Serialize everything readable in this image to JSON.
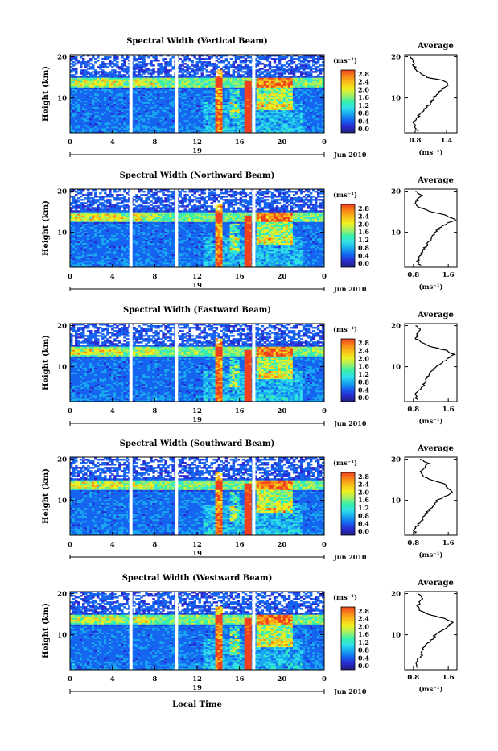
{
  "figure": {
    "xlabel": "Local Time",
    "date_label": "Jun 2010",
    "day_label": "19",
    "colorbar_unit": "(ms⁻¹)",
    "colorbar_ticks": [
      "0.0",
      "0.4",
      "0.8",
      "1.2",
      "1.6",
      "2.0",
      "2.4",
      "2.8"
    ],
    "colormap": [
      "#20207a",
      "#2a2ad0",
      "#1565f0",
      "#19a8f0",
      "#30e0e8",
      "#3af0a8",
      "#a8f060",
      "#f0f020",
      "#f8c018",
      "#f88818",
      "#f04020"
    ]
  },
  "chart_data": [
    {
      "type": "heatmap",
      "title": "Spectral Width (Vertical Beam)",
      "ylabel": "Height (km)",
      "x_ticks": [
        "0",
        "4",
        "8",
        "12",
        "16",
        "20",
        "0"
      ],
      "xlim": [
        0,
        24
      ],
      "y_ticks": [
        "10",
        "20"
      ],
      "ylim": [
        1.5,
        20.5
      ],
      "gaps": [
        [
          5.6,
          5.9
        ],
        [
          9.9,
          10.2
        ],
        [
          17.2,
          17.5
        ]
      ],
      "profile": {
        "title": "Average",
        "xlabel": "(ms⁻¹)",
        "x_ticks": [
          "0.8",
          "1.4"
        ],
        "xlim": [
          0.6,
          1.6
        ],
        "y_ticks": [
          "10",
          "20"
        ],
        "points": [
          [
            2,
            0.85
          ],
          [
            3,
            0.8
          ],
          [
            4,
            0.78
          ],
          [
            5,
            0.82
          ],
          [
            6,
            0.9
          ],
          [
            7,
            0.95
          ],
          [
            8,
            1.05
          ],
          [
            9,
            1.1
          ],
          [
            10,
            1.15
          ],
          [
            11,
            1.22
          ],
          [
            12,
            1.3
          ],
          [
            13,
            1.42
          ],
          [
            14,
            1.38
          ],
          [
            15,
            1.05
          ],
          [
            16,
            0.9
          ],
          [
            17,
            0.82
          ],
          [
            18,
            0.78
          ],
          [
            19,
            0.75
          ],
          [
            20,
            0.72
          ]
        ]
      }
    },
    {
      "type": "heatmap",
      "title": "Spectral Width (Northward Beam)",
      "ylabel": "Height (km)",
      "x_ticks": [
        "0",
        "4",
        "8",
        "12",
        "16",
        "20",
        "0"
      ],
      "xlim": [
        0,
        24
      ],
      "y_ticks": [
        "10",
        "20"
      ],
      "ylim": [
        1.5,
        20.5
      ],
      "gaps": [
        [
          5.6,
          5.9
        ],
        [
          9.9,
          10.2
        ],
        [
          17.2,
          17.5
        ]
      ],
      "profile": {
        "title": "Average",
        "xlabel": "(ms⁻¹)",
        "x_ticks": [
          "0.8",
          "1.6"
        ],
        "xlim": [
          0.6,
          1.8
        ],
        "y_ticks": [
          "10",
          "20"
        ],
        "points": [
          [
            2,
            0.95
          ],
          [
            3,
            0.9
          ],
          [
            4,
            0.95
          ],
          [
            5,
            1.0
          ],
          [
            6,
            1.05
          ],
          [
            7,
            1.1
          ],
          [
            8,
            1.2
          ],
          [
            9,
            1.25
          ],
          [
            10,
            1.3
          ],
          [
            11,
            1.4
          ],
          [
            12,
            1.55
          ],
          [
            13,
            1.75
          ],
          [
            14,
            1.6
          ],
          [
            15,
            1.2
          ],
          [
            16,
            0.95
          ],
          [
            17,
            0.85
          ],
          [
            18,
            0.9
          ],
          [
            19,
            1.0
          ],
          [
            20,
            0.85
          ]
        ]
      }
    },
    {
      "type": "heatmap",
      "title": "Spectral Width (Eastward Beam)",
      "ylabel": "Height (km)",
      "x_ticks": [
        "0",
        "4",
        "8",
        "12",
        "16",
        "20",
        "0"
      ],
      "xlim": [
        0,
        24
      ],
      "y_ticks": [
        "10",
        "20"
      ],
      "ylim": [
        1.5,
        20.5
      ],
      "gaps": [
        [
          5.6,
          5.9
        ],
        [
          9.9,
          10.2
        ],
        [
          17.2,
          17.5
        ]
      ],
      "profile": {
        "title": "Average",
        "xlabel": "(ms⁻¹)",
        "x_ticks": [
          "0.8",
          "1.6"
        ],
        "xlim": [
          0.6,
          1.8
        ],
        "y_ticks": [
          "10",
          "20"
        ],
        "points": [
          [
            2,
            0.9
          ],
          [
            3,
            0.85
          ],
          [
            4,
            0.9
          ],
          [
            5,
            1.0
          ],
          [
            6,
            1.05
          ],
          [
            7,
            1.1
          ],
          [
            8,
            1.15
          ],
          [
            9,
            1.25
          ],
          [
            10,
            1.3
          ],
          [
            11,
            1.45
          ],
          [
            12,
            1.6
          ],
          [
            13,
            1.72
          ],
          [
            14,
            1.55
          ],
          [
            15,
            1.15
          ],
          [
            16,
            0.95
          ],
          [
            17,
            0.85
          ],
          [
            18,
            0.9
          ],
          [
            19,
            0.95
          ],
          [
            20,
            0.85
          ]
        ]
      }
    },
    {
      "type": "heatmap",
      "title": "Spectral Width (Southward Beam)",
      "ylabel": "Height (km)",
      "x_ticks": [
        "0",
        "4",
        "8",
        "12",
        "16",
        "20",
        "0"
      ],
      "xlim": [
        0,
        24
      ],
      "y_ticks": [
        "10",
        "20"
      ],
      "ylim": [
        1.5,
        20.5
      ],
      "gaps": [
        [
          5.6,
          5.9
        ],
        [
          9.9,
          10.2
        ],
        [
          17.2,
          17.5
        ]
      ],
      "profile": {
        "title": "Average",
        "xlabel": "(ms⁻¹)",
        "x_ticks": [
          "0.8",
          "1.6"
        ],
        "xlim": [
          0.6,
          1.8
        ],
        "y_ticks": [
          "10",
          "20"
        ],
        "points": [
          [
            2,
            0.85
          ],
          [
            3,
            0.8
          ],
          [
            4,
            0.9
          ],
          [
            5,
            1.0
          ],
          [
            6,
            1.05
          ],
          [
            7,
            1.1
          ],
          [
            8,
            1.2
          ],
          [
            9,
            1.3
          ],
          [
            10,
            1.35
          ],
          [
            11,
            1.55
          ],
          [
            12,
            1.7
          ],
          [
            13,
            1.6
          ],
          [
            14,
            1.5
          ],
          [
            15,
            1.2
          ],
          [
            16,
            1.0
          ],
          [
            17,
            0.95
          ],
          [
            18,
            1.05
          ],
          [
            19,
            1.15
          ],
          [
            20,
            0.95
          ]
        ]
      }
    },
    {
      "type": "heatmap",
      "title": "Spectral Width (Westward Beam)",
      "ylabel": "Height (km)",
      "x_ticks": [
        "0",
        "4",
        "8",
        "12",
        "16",
        "20",
        "0"
      ],
      "xlim": [
        0,
        24
      ],
      "y_ticks": [
        "10",
        "20"
      ],
      "ylim": [
        1.5,
        20.5
      ],
      "gaps": [
        [
          5.6,
          5.9
        ],
        [
          9.9,
          10.2
        ],
        [
          17.2,
          17.5
        ]
      ],
      "profile": {
        "title": "Average",
        "xlabel": "(ms⁻¹)",
        "x_ticks": [
          "0.8",
          "1.6"
        ],
        "xlim": [
          0.6,
          1.8
        ],
        "y_ticks": [
          "10",
          "20"
        ],
        "points": [
          [
            2,
            0.9
          ],
          [
            3,
            0.85
          ],
          [
            4,
            0.9
          ],
          [
            5,
            1.0
          ],
          [
            6,
            1.0
          ],
          [
            7,
            1.05
          ],
          [
            8,
            1.15
          ],
          [
            9,
            1.25
          ],
          [
            10,
            1.3
          ],
          [
            11,
            1.45
          ],
          [
            12,
            1.6
          ],
          [
            13,
            1.7
          ],
          [
            14,
            1.5
          ],
          [
            15,
            1.15
          ],
          [
            16,
            0.95
          ],
          [
            17,
            0.9
          ],
          [
            18,
            0.95
          ],
          [
            19,
            1.0
          ],
          [
            20,
            0.9
          ]
        ]
      }
    }
  ]
}
